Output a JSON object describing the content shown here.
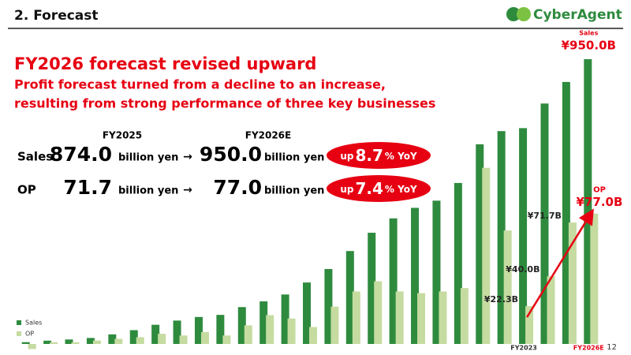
{
  "header": {
    "title": "2.  Forecast",
    "logo": "CyberAgent"
  },
  "headline": "FY2026 forecast revised upward",
  "subheadline": [
    "Profit forecast turned from a decline to an increase,",
    "resulting from strong performance of three key businesses"
  ],
  "comparison": {
    "columns": [
      "FY2025",
      "FY2026E"
    ],
    "arrow": "→",
    "rows": [
      {
        "label": "Sales",
        "from": "874.0",
        "from_unit": "billion yen",
        "to": "950.0",
        "to_unit": "billion yen",
        "badge": [
          "up",
          "8.7",
          "% YoY"
        ]
      },
      {
        "label": "OP",
        "from": "71.7",
        "from_unit": "billion yen",
        "to": "77.0",
        "to_unit": "billion yen",
        "badge": [
          "up",
          "7.4",
          "% YoY"
        ]
      }
    ]
  },
  "chart_data": {
    "type": "bar",
    "categories": [
      null,
      null,
      null,
      null,
      null,
      null,
      null,
      null,
      null,
      null,
      null,
      null,
      null,
      null,
      null,
      null,
      null,
      null,
      null,
      null,
      null,
      null,
      null,
      "FY2023",
      null,
      null,
      "FY2026E"
    ],
    "series": [
      {
        "name": "Sales",
        "color": "#2e8b3e",
        "axis": "y",
        "values": [
          6,
          11,
          15,
          20,
          32,
          46,
          64,
          78,
          90,
          97,
          123,
          142,
          165,
          205,
          250,
          310,
          371,
          419,
          454,
          478,
          537,
          666,
          710,
          720,
          802,
          874,
          950
        ],
        "value_labels": [
          null,
          null,
          null,
          null,
          null,
          null,
          null,
          null,
          null,
          null,
          null,
          null,
          null,
          null,
          null,
          null,
          null,
          null,
          null,
          null,
          null,
          null,
          null,
          null,
          null,
          null,
          "¥950.0B"
        ]
      },
      {
        "name": "OP",
        "color": "#c5dba0",
        "axis": "y2",
        "values": [
          -3,
          1,
          1,
          2,
          3,
          4,
          6,
          5,
          7,
          5,
          11,
          17,
          15,
          10,
          22,
          31,
          37,
          31,
          30,
          31,
          33,
          104,
          67,
          22.3,
          40.0,
          71.7,
          77.0
        ],
        "value_labels": [
          null,
          null,
          null,
          null,
          null,
          null,
          null,
          null,
          null,
          null,
          null,
          null,
          null,
          null,
          null,
          null,
          null,
          null,
          null,
          null,
          null,
          null,
          null,
          "¥22.3B",
          "¥40.0B",
          "¥71.7B",
          "¥77.0B"
        ]
      }
    ],
    "ylim": [
      0,
      1000
    ],
    "y2lim": [
      0,
      177
    ],
    "legend": "bottom-left"
  },
  "page_number": "12"
}
